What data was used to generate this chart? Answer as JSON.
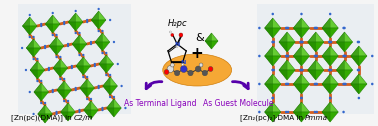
{
  "bg_color": "#f5f5f5",
  "left_label_1": "[Zn(pc)(DMA)] in ",
  "left_label_italic": "C2/m",
  "right_label_1": "[Zn₂(pc)₂]·DMA in ",
  "right_label_italic": "Pmma",
  "center_mol_label": "H₂pc",
  "plus_label": "+",
  "arrow_left_label": "As Terminal Ligand",
  "arrow_right_label": "As Guest Molecule",
  "arrow_color": "#5500aa",
  "ellipse_color": "#f5a020",
  "ellipse_alpha": 0.9,
  "green_dark": "#1a7a00",
  "green_mid": "#33aa00",
  "green_light": "#66cc33",
  "orange_dark": "#cc4400",
  "orange_mid": "#dd6611",
  "blue_atom": "#3355cc",
  "label_fontsize": 5.2,
  "arrow_label_fontsize": 5.5,
  "arrow_label_color": "#8800bb",
  "crystal_bg_left": "#ddeeff",
  "crystal_bg_right": "#ddeeff"
}
